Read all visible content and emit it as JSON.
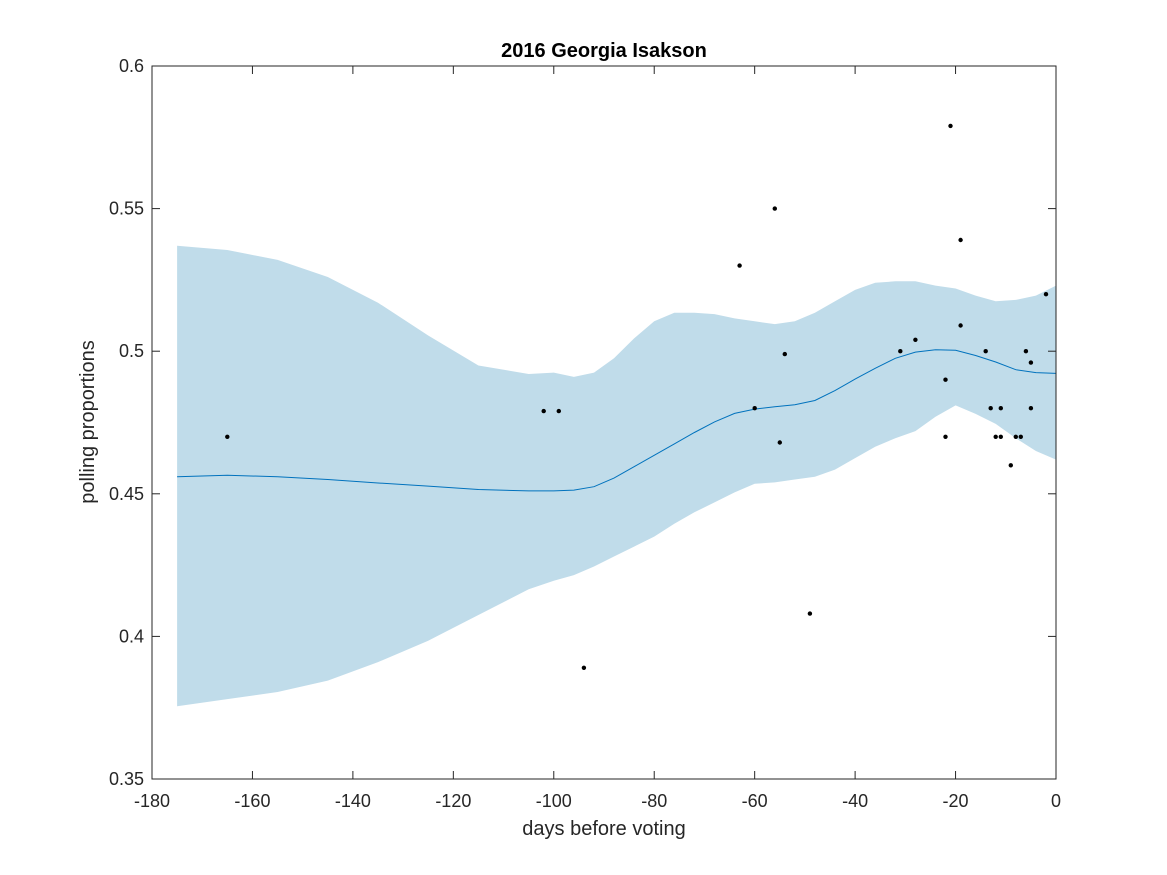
{
  "chart_data": {
    "type": "line",
    "title": "2016 Georgia Isakson",
    "xlabel": "days before voting",
    "ylabel": "polling proportions",
    "xlim": [
      -180,
      0
    ],
    "ylim": [
      0.35,
      0.6
    ],
    "xticks": [
      -180,
      -160,
      -140,
      -120,
      -100,
      -80,
      -60,
      -40,
      -20,
      0
    ],
    "xtick_labels": [
      "-180",
      "-160",
      "-140",
      "-120",
      "-100",
      "-80",
      "-60",
      "-40",
      "-20",
      "0"
    ],
    "yticks": [
      0.35,
      0.4,
      0.45,
      0.5,
      0.55,
      0.6
    ],
    "ytick_labels": [
      "0.35",
      "0.4",
      "0.45",
      "0.5",
      "0.55",
      "0.6"
    ],
    "grid": false,
    "colors": {
      "band": "#c0dcea",
      "line": "#0072bd",
      "points": "#000000",
      "axes": "#262626"
    },
    "series": [
      {
        "kind": "band",
        "x": [
          -175,
          -165,
          -155,
          -145,
          -135,
          -125,
          -115,
          -105,
          -100,
          -96,
          -92,
          -88,
          -84,
          -80,
          -76,
          -72,
          -68,
          -64,
          -60,
          -56,
          -52,
          -48,
          -44,
          -40,
          -36,
          -32,
          -28,
          -24,
          -20,
          -16,
          -12,
          -8,
          -4,
          0
        ],
        "upper": [
          0.537,
          0.5355,
          0.532,
          0.526,
          0.517,
          0.5055,
          0.495,
          0.492,
          0.4925,
          0.491,
          0.4925,
          0.4975,
          0.5045,
          0.5105,
          0.5135,
          0.5135,
          0.513,
          0.5115,
          0.5105,
          0.5095,
          0.5105,
          0.5135,
          0.5175,
          0.5215,
          0.524,
          0.5245,
          0.5245,
          0.523,
          0.522,
          0.5195,
          0.5175,
          0.518,
          0.5195,
          0.523
        ],
        "lower": [
          0.3755,
          0.378,
          0.3805,
          0.3845,
          0.391,
          0.3985,
          0.4075,
          0.4165,
          0.4195,
          0.4215,
          0.4245,
          0.428,
          0.4315,
          0.435,
          0.4395,
          0.4435,
          0.447,
          0.4505,
          0.4535,
          0.454,
          0.455,
          0.456,
          0.4585,
          0.4625,
          0.4665,
          0.4695,
          0.472,
          0.477,
          0.481,
          0.478,
          0.4745,
          0.4695,
          0.465,
          0.462
        ]
      },
      {
        "kind": "line",
        "x": [
          -175,
          -165,
          -155,
          -145,
          -135,
          -125,
          -115,
          -105,
          -100,
          -96,
          -92,
          -88,
          -84,
          -80,
          -76,
          -72,
          -68,
          -64,
          -60,
          -56,
          -52,
          -48,
          -44,
          -40,
          -36,
          -32,
          -28,
          -24,
          -20,
          -16,
          -12,
          -8,
          -4,
          0
        ],
        "y": [
          0.456,
          0.4565,
          0.456,
          0.455,
          0.4538,
          0.4527,
          0.4515,
          0.451,
          0.451,
          0.4513,
          0.4525,
          0.4555,
          0.4595,
          0.4635,
          0.4675,
          0.4715,
          0.4752,
          0.4782,
          0.4797,
          0.4805,
          0.4812,
          0.4827,
          0.4862,
          0.4902,
          0.494,
          0.4975,
          0.4997,
          0.5005,
          0.5003,
          0.4985,
          0.4962,
          0.4935,
          0.4925,
          0.4922
        ]
      },
      {
        "kind": "scatter",
        "points": [
          [
            -165,
            0.47
          ],
          [
            -102,
            0.479
          ],
          [
            -99,
            0.479
          ],
          [
            -94,
            0.389
          ],
          [
            -63,
            0.53
          ],
          [
            -60,
            0.48
          ],
          [
            -56,
            0.55
          ],
          [
            -55,
            0.468
          ],
          [
            -54,
            0.499
          ],
          [
            -49,
            0.408
          ],
          [
            -31,
            0.5
          ],
          [
            -28,
            0.504
          ],
          [
            -22,
            0.49
          ],
          [
            -22,
            0.47
          ],
          [
            -21,
            0.579
          ],
          [
            -19,
            0.539
          ],
          [
            -19,
            0.509
          ],
          [
            -14,
            0.5
          ],
          [
            -13,
            0.48
          ],
          [
            -12,
            0.47
          ],
          [
            -11,
            0.47
          ],
          [
            -11,
            0.48
          ],
          [
            -9,
            0.46
          ],
          [
            -8,
            0.47
          ],
          [
            -7,
            0.47
          ],
          [
            -6,
            0.5
          ],
          [
            -5,
            0.496
          ],
          [
            -5,
            0.48
          ],
          [
            -2,
            0.52
          ]
        ]
      }
    ]
  }
}
